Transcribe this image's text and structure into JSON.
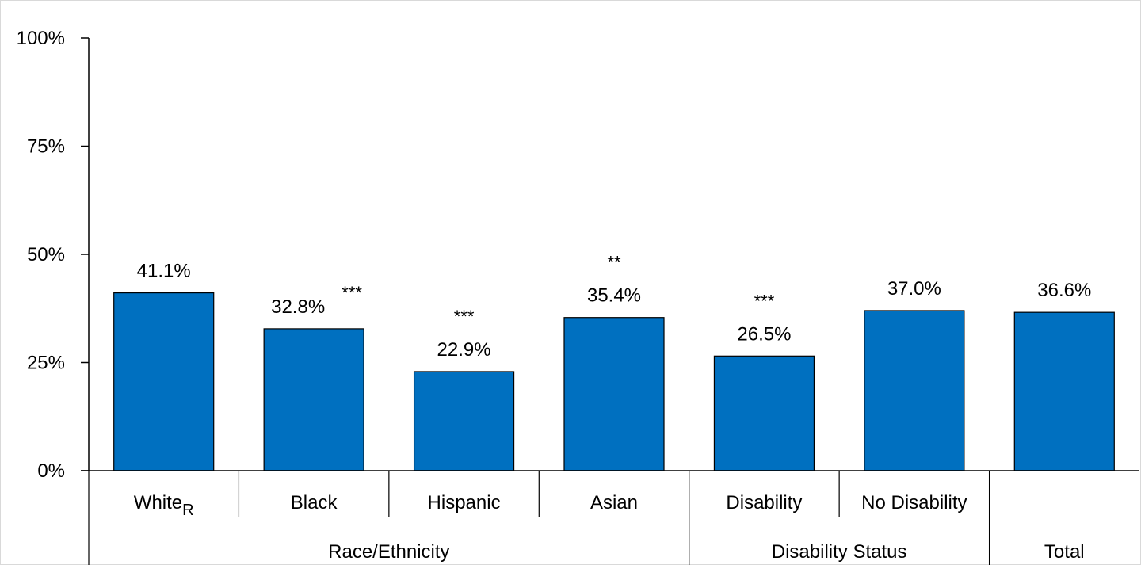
{
  "chart_data": {
    "type": "bar",
    "categories": [
      "White",
      "Black",
      "Hispanic",
      "Asian",
      "Disability",
      "No Disability",
      ""
    ],
    "category_subscripts": [
      "R",
      "",
      "",
      "",
      "",
      "",
      ""
    ],
    "values": [
      41.1,
      32.8,
      22.9,
      35.4,
      26.5,
      37.0,
      36.6
    ],
    "value_labels": [
      "41.1%",
      "32.8%",
      "22.9%",
      "35.4%",
      "26.5%",
      "37.0%",
      "36.6%"
    ],
    "significance": [
      "",
      "***",
      "***",
      "**",
      "***",
      "",
      ""
    ],
    "groups": [
      {
        "label": "Race/Ethnicity",
        "start": 0,
        "end": 3
      },
      {
        "label": "Disability Status",
        "start": 4,
        "end": 5
      },
      {
        "label": "Total",
        "start": 6,
        "end": 6
      }
    ],
    "yticks": [
      "0%",
      "25%",
      "50%",
      "75%",
      "100%"
    ],
    "ylim": [
      0,
      100
    ],
    "bar_color": "#0070C0",
    "grid": false
  }
}
